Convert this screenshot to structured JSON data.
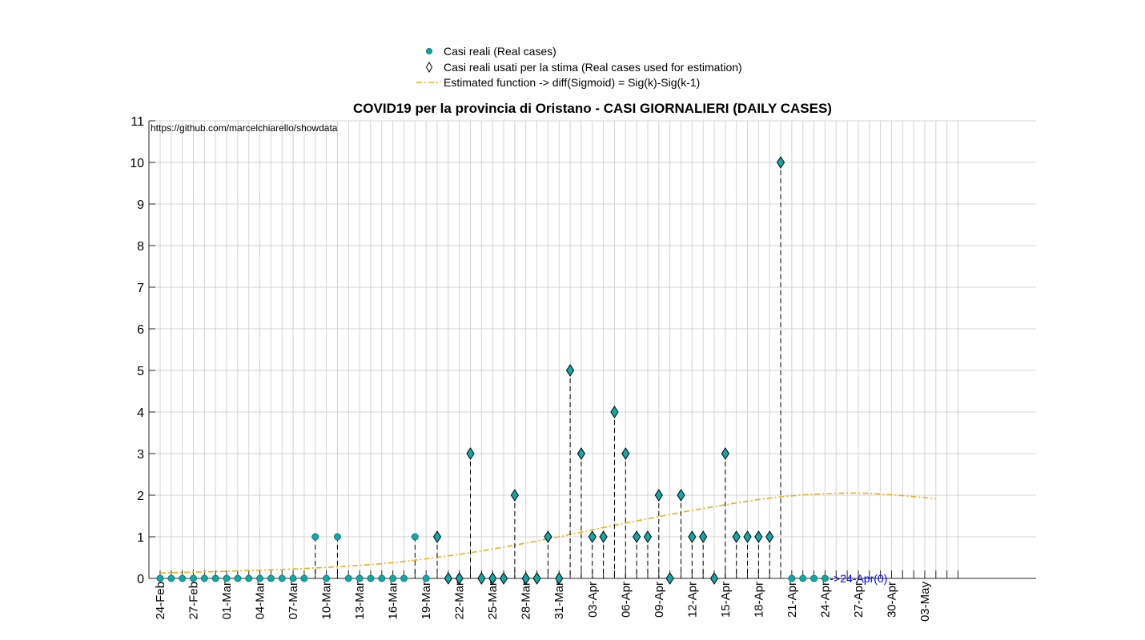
{
  "chart_data": {
    "type": "scatter",
    "title": "COVID19 per la provincia di Oristano - CASI GIORNALIERI (DAILY CASES)",
    "annotation": "https://github.com/marcelchiarello/showdata",
    "last_label": "->24-Apr(0)",
    "legend": {
      "real": "Casi reali (Real cases)",
      "used": "Casi reali usati per la stima (Real cases used for estimation)",
      "fit": "Estimated function -> diff(Sigmoid) = Sig(k)-Sig(k-1)"
    },
    "legend_placement": "top-center (outside plot)",
    "grid": true,
    "ylim": [
      0,
      11
    ],
    "yticks": [
      "0",
      "1",
      "2",
      "3",
      "4",
      "5",
      "6",
      "7",
      "8",
      "9",
      "10",
      "11"
    ],
    "x_day_range": [
      0,
      72
    ],
    "xtick_labels": [
      "24-Feb",
      "27-Feb",
      "01-Mar",
      "04-Mar",
      "07-Mar",
      "10-Mar",
      "13-Mar",
      "16-Mar",
      "19-Mar",
      "22-Mar",
      "25-Mar",
      "28-Mar",
      "31-Mar",
      "03-Apr",
      "06-Apr",
      "09-Apr",
      "12-Apr",
      "15-Apr",
      "18-Apr",
      "21-Apr",
      "24-Apr",
      "27-Apr",
      "30-Apr",
      "03-May"
    ],
    "dates": [
      "24-Feb",
      "25-Feb",
      "26-Feb",
      "27-Feb",
      "28-Feb",
      "29-Feb",
      "01-Mar",
      "02-Mar",
      "03-Mar",
      "04-Mar",
      "05-Mar",
      "06-Mar",
      "07-Mar",
      "08-Mar",
      "09-Mar",
      "10-Mar",
      "11-Mar",
      "12-Mar",
      "13-Mar",
      "14-Mar",
      "15-Mar",
      "16-Mar",
      "17-Mar",
      "18-Mar",
      "19-Mar",
      "20-Mar",
      "21-Mar",
      "22-Mar",
      "23-Mar",
      "24-Mar",
      "25-Mar",
      "26-Mar",
      "27-Mar",
      "28-Mar",
      "29-Mar",
      "30-Mar",
      "31-Mar",
      "01-Apr",
      "02-Apr",
      "03-Apr",
      "04-Apr",
      "05-Apr",
      "06-Apr",
      "07-Apr",
      "08-Apr",
      "09-Apr",
      "10-Apr",
      "11-Apr",
      "12-Apr",
      "13-Apr",
      "14-Apr",
      "15-Apr",
      "16-Apr",
      "17-Apr",
      "18-Apr",
      "19-Apr",
      "20-Apr",
      "21-Apr",
      "22-Apr",
      "23-Apr",
      "24-Apr"
    ],
    "series": [
      {
        "name": "Casi reali (Real cases)",
        "marker": "circle",
        "color": "#12a6a6",
        "values": [
          0,
          0,
          0,
          0,
          0,
          0,
          0,
          0,
          0,
          0,
          0,
          0,
          0,
          0,
          1,
          0,
          1,
          0,
          0,
          0,
          0,
          0,
          0,
          1,
          0,
          1,
          0,
          0,
          3,
          0,
          0,
          0,
          2,
          0,
          0,
          1,
          0,
          5,
          3,
          1,
          1,
          4,
          3,
          1,
          1,
          2,
          0,
          2,
          1,
          1,
          0,
          3,
          1,
          1,
          1,
          1,
          10,
          0,
          0,
          0,
          0
        ]
      },
      {
        "name": "Casi reali usati per la stima (Real cases used for estimation)",
        "marker": "diamond",
        "color": "#12a6a6",
        "start_date": "20-Mar",
        "values": [
          1,
          0,
          0,
          3,
          0,
          0,
          0,
          2,
          0,
          0,
          1,
          0,
          5,
          3,
          1,
          1,
          4,
          3,
          1,
          1,
          2,
          0,
          2,
          1,
          1,
          0,
          3,
          1,
          1,
          1,
          1,
          10
        ]
      },
      {
        "name": "Estimated function -> diff(Sigmoid) = Sig(k)-Sig(k-1)",
        "style": "dash-dot",
        "color": "#e6b21a",
        "x_dates": [
          "24-Feb",
          "02-Mar",
          "09-Mar",
          "16-Mar",
          "23-Mar",
          "30-Mar",
          "06-Apr",
          "13-Apr",
          "20-Apr",
          "27-Apr",
          "04-May"
        ],
        "values": [
          0.13,
          0.18,
          0.25,
          0.38,
          0.62,
          0.95,
          1.33,
          1.68,
          1.96,
          2.05,
          1.92
        ]
      }
    ]
  }
}
